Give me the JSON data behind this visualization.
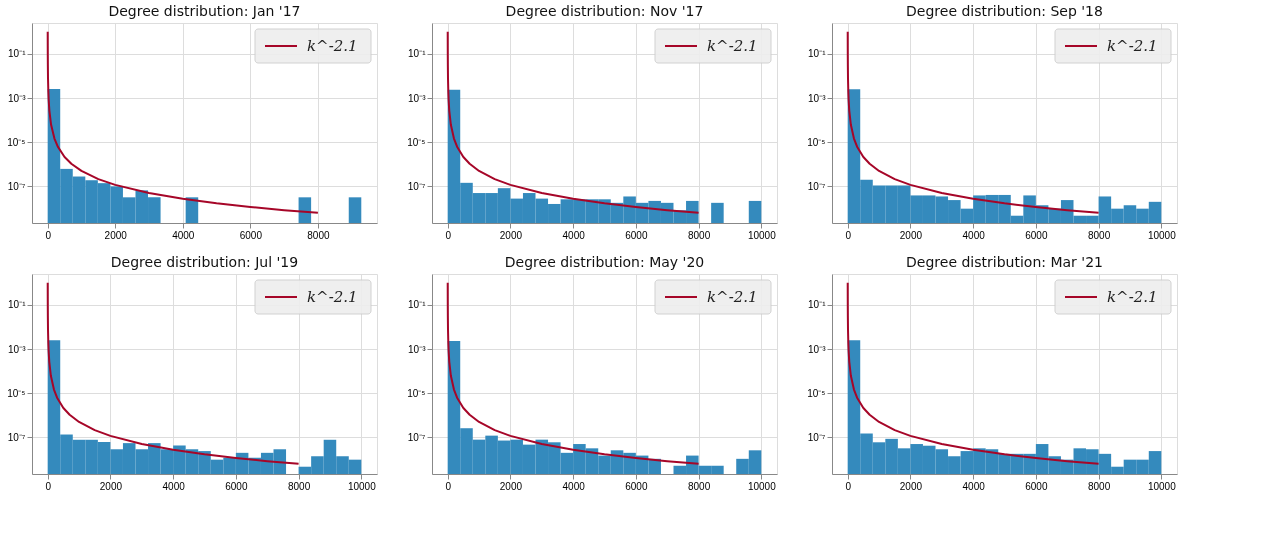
{
  "chart_data": [
    {
      "type": "histogram",
      "title": "Degree distribution: Jan '17",
      "color": "#348abd",
      "log": "y",
      "grid": true,
      "legend": "top right",
      "bins": [
        0,
        371.4,
        742.8,
        1114.2,
        1485.6,
        1857,
        2228.4,
        2599.8,
        2971.2,
        3342.6,
        3714,
        4085.4,
        4456.8,
        4828.2,
        5199.6,
        5571,
        5942.4,
        6313.8,
        6685.2,
        7056.6,
        7428,
        7799.4,
        8170.8,
        8542.2,
        8913.6,
        9285
      ],
      "values": [
        0.0026,
        6.2e-07,
        2.8e-07,
        1.9e-07,
        1.4e-07,
        1e-07,
        3.2e-08,
        6.6e-08,
        3.2e-08,
        null,
        null,
        3.2e-08,
        null,
        null,
        null,
        null,
        null,
        null,
        null,
        null,
        3.2e-08,
        null,
        null,
        null,
        3.2e-08
      ],
      "xlim": [
        -464,
        9750
      ],
      "xticks": [
        0,
        2000,
        4000,
        6000,
        8000
      ],
      "ylim": [
        2.2e-09,
        2.5
      ],
      "yticks": [
        {
          "value": 0.1,
          "label": "10⁻¹"
        },
        {
          "value": 0.001,
          "label": "10⁻³"
        },
        {
          "value": 1e-05,
          "label": "10⁻⁵"
        },
        {
          "value": 1e-07,
          "label": "10⁻⁷"
        }
      ],
      "series": [
        {
          "type": "line",
          "name": "k^-2.1",
          "color": "#a60628",
          "line_style": "solid",
          "x": [
            1,
            2,
            3,
            5,
            10,
            20,
            30,
            50,
            100,
            200,
            300,
            500,
            700,
            1000,
            1500,
            2000,
            3000,
            4000,
            5000,
            6000,
            7000,
            8000
          ],
          "values": [
            1,
            0.233,
            0.0996,
            0.034,
            0.00794,
            0.00186,
            0.00079,
            0.000271,
            6.31e-05,
            1.47e-05,
            6.29e-06,
            2.15e-06,
            1.06e-06,
            5.01e-07,
            2.14e-07,
            1.17e-07,
            4.99e-08,
            2.73e-08,
            1.71e-08,
            1.17e-08,
            8.4e-09,
            6.37e-09
          ]
        }
      ]
    },
    {
      "type": "histogram",
      "title": "Degree distribution: Nov '17",
      "color": "#348abd",
      "log": "y",
      "grid": true,
      "legend": "top right",
      "bins": [
        0,
        400,
        800,
        1200,
        1600,
        2000,
        2400,
        2800,
        3200,
        3600,
        4000,
        4400,
        4800,
        5200,
        5600,
        6000,
        6400,
        6800,
        7200,
        7600,
        8000,
        8400,
        8800,
        9200,
        9600,
        10000
      ],
      "values": [
        0.0024,
        1.45e-07,
        5e-08,
        5e-08,
        8.3e-08,
        2.8e-08,
        5e-08,
        2.8e-08,
        1.6e-08,
        2.6e-08,
        2.6e-08,
        2.6e-08,
        2.6e-08,
        1.8e-08,
        3.5e-08,
        1.8e-08,
        2.2e-08,
        1.8e-08,
        8.3e-09,
        2.2e-08,
        null,
        1.8e-08,
        null,
        null,
        2.2e-08
      ],
      "xlim": [
        -500,
        10500
      ],
      "xticks": [
        0,
        2000,
        4000,
        6000,
        8000,
        10000
      ],
      "ylim": [
        2.2e-09,
        2.5
      ],
      "yticks": [
        {
          "value": 0.1,
          "label": "10⁻¹"
        },
        {
          "value": 0.001,
          "label": "10⁻³"
        },
        {
          "value": 1e-05,
          "label": "10⁻⁵"
        },
        {
          "value": 1e-07,
          "label": "10⁻⁷"
        }
      ],
      "series": [
        {
          "type": "line",
          "name": "k^-2.1",
          "color": "#a60628",
          "line_style": "solid",
          "x": [
            1,
            2,
            3,
            5,
            10,
            20,
            30,
            50,
            100,
            200,
            300,
            500,
            700,
            1000,
            1500,
            2000,
            3000,
            4000,
            5000,
            6000,
            7000,
            8000
          ],
          "values": [
            1,
            0.233,
            0.0996,
            0.034,
            0.00794,
            0.00186,
            0.00079,
            0.000271,
            6.31e-05,
            1.47e-05,
            6.29e-06,
            2.15e-06,
            1.06e-06,
            5.01e-07,
            2.14e-07,
            1.17e-07,
            4.99e-08,
            2.73e-08,
            1.71e-08,
            1.17e-08,
            8.4e-09,
            6.37e-09
          ]
        }
      ]
    },
    {
      "type": "histogram",
      "title": "Degree distribution: Sep '18",
      "color": "#348abd",
      "log": "y",
      "grid": true,
      "legend": "top right",
      "bins": [
        0,
        400,
        800,
        1200,
        1600,
        2000,
        2400,
        2800,
        3200,
        3600,
        4000,
        4400,
        4800,
        5200,
        5600,
        6000,
        6400,
        6800,
        7200,
        7600,
        8000,
        8400,
        8800,
        9200,
        9600,
        10000
      ],
      "values": [
        0.0025,
        2e-07,
        1.1e-07,
        1.1e-07,
        1.1e-07,
        3.9e-08,
        3.9e-08,
        3.5e-08,
        2.4e-08,
        9.8e-09,
        3.9e-08,
        4.1e-08,
        4.1e-08,
        4.7e-09,
        3.9e-08,
        1.4e-08,
        9.8e-09,
        2.4e-08,
        4.7e-09,
        4.7e-09,
        3.5e-08,
        9.8e-09,
        1.4e-08,
        9.8e-09,
        2e-08
      ],
      "xlim": [
        -500,
        10500
      ],
      "xticks": [
        0,
        2000,
        4000,
        6000,
        8000,
        10000
      ],
      "ylim": [
        2.2e-09,
        2.5
      ],
      "yticks": [
        {
          "value": 0.1,
          "label": "10⁻¹"
        },
        {
          "value": 0.001,
          "label": "10⁻³"
        },
        {
          "value": 1e-05,
          "label": "10⁻⁵"
        },
        {
          "value": 1e-07,
          "label": "10⁻⁷"
        }
      ],
      "series": [
        {
          "type": "line",
          "name": "k^-2.1",
          "color": "#a60628",
          "line_style": "solid",
          "x": [
            1,
            2,
            3,
            5,
            10,
            20,
            30,
            50,
            100,
            200,
            300,
            500,
            700,
            1000,
            1500,
            2000,
            3000,
            4000,
            5000,
            6000,
            7000,
            8000
          ],
          "values": [
            1,
            0.233,
            0.0996,
            0.034,
            0.00794,
            0.00186,
            0.00079,
            0.000271,
            6.31e-05,
            1.47e-05,
            6.29e-06,
            2.15e-06,
            1.06e-06,
            5.01e-07,
            2.14e-07,
            1.17e-07,
            4.99e-08,
            2.73e-08,
            1.71e-08,
            1.17e-08,
            8.4e-09,
            6.37e-09
          ]
        }
      ]
    },
    {
      "type": "histogram",
      "title": "Degree distribution: Jul '19",
      "color": "#348abd",
      "log": "y",
      "grid": true,
      "legend": "top right",
      "bins": [
        0,
        400,
        800,
        1200,
        1600,
        2000,
        2400,
        2800,
        3200,
        3600,
        4000,
        4400,
        4800,
        5200,
        5600,
        6000,
        6400,
        6800,
        7200,
        7600,
        8000,
        8400,
        8800,
        9200,
        9600,
        10000
      ],
      "values": [
        0.0025,
        1.35e-07,
        7.8e-08,
        7.8e-08,
        6.2e-08,
        2.9e-08,
        5.5e-08,
        2.9e-08,
        5.5e-08,
        2.9e-08,
        4.3e-08,
        2.9e-08,
        2.4e-08,
        9.8e-09,
        1.2e-08,
        2e-08,
        1.2e-08,
        2e-08,
        2.9e-08,
        null,
        4.7e-09,
        1.4e-08,
        7.8e-08,
        1.4e-08,
        9.8e-09
      ],
      "xlim": [
        -500,
        10500
      ],
      "xticks": [
        0,
        2000,
        4000,
        6000,
        8000,
        10000
      ],
      "ylim": [
        2.2e-09,
        2.5
      ],
      "yticks": [
        {
          "value": 0.1,
          "label": "10⁻¹"
        },
        {
          "value": 0.001,
          "label": "10⁻³"
        },
        {
          "value": 1e-05,
          "label": "10⁻⁵"
        },
        {
          "value": 1e-07,
          "label": "10⁻⁷"
        }
      ],
      "series": [
        {
          "type": "line",
          "name": "k^-2.1",
          "color": "#a60628",
          "line_style": "solid",
          "x": [
            1,
            2,
            3,
            5,
            10,
            20,
            30,
            50,
            100,
            200,
            300,
            500,
            700,
            1000,
            1500,
            2000,
            3000,
            4000,
            5000,
            6000,
            7000,
            8000
          ],
          "values": [
            1,
            0.233,
            0.0996,
            0.034,
            0.00794,
            0.00186,
            0.00079,
            0.000271,
            6.31e-05,
            1.47e-05,
            6.29e-06,
            2.15e-06,
            1.06e-06,
            5.01e-07,
            2.14e-07,
            1.17e-07,
            4.99e-08,
            2.73e-08,
            1.71e-08,
            1.17e-08,
            8.4e-09,
            6.37e-09
          ]
        }
      ]
    },
    {
      "type": "histogram",
      "title": "Degree distribution: May '20",
      "color": "#348abd",
      "log": "y",
      "grid": true,
      "legend": "top right",
      "bins": [
        0,
        400,
        800,
        1200,
        1600,
        2000,
        2400,
        2800,
        3200,
        3600,
        4000,
        4400,
        4800,
        5200,
        5600,
        6000,
        6400,
        6800,
        7200,
        7600,
        8000,
        8400,
        8800,
        9200,
        9600,
        10000
      ],
      "values": [
        0.0023,
        2.6e-07,
        7.9e-08,
        1.2e-07,
        7.2e-08,
        7.9e-08,
        4.7e-08,
        7.9e-08,
        6e-08,
        2e-08,
        5e-08,
        3.2e-08,
        1.5e-08,
        2.6e-08,
        2e-08,
        1.5e-08,
        1.07e-08,
        null,
        5.2e-09,
        1.5e-08,
        5.2e-09,
        5.2e-09,
        null,
        1.07e-08,
        2.6e-08
      ],
      "xlim": [
        -500,
        10500
      ],
      "xticks": [
        0,
        2000,
        4000,
        6000,
        8000,
        10000
      ],
      "ylim": [
        2.2e-09,
        2.5
      ],
      "yticks": [
        {
          "value": 0.1,
          "label": "10⁻¹"
        },
        {
          "value": 0.001,
          "label": "10⁻³"
        },
        {
          "value": 1e-05,
          "label": "10⁻⁵"
        },
        {
          "value": 1e-07,
          "label": "10⁻⁷"
        }
      ],
      "series": [
        {
          "type": "line",
          "name": "k^-2.1",
          "color": "#a60628",
          "line_style": "solid",
          "x": [
            1,
            2,
            3,
            5,
            10,
            20,
            30,
            50,
            100,
            200,
            300,
            500,
            700,
            1000,
            1500,
            2000,
            3000,
            4000,
            5000,
            6000,
            7000,
            8000
          ],
          "values": [
            1,
            0.233,
            0.0996,
            0.034,
            0.00794,
            0.00186,
            0.00079,
            0.000271,
            6.31e-05,
            1.47e-05,
            6.29e-06,
            2.15e-06,
            1.06e-06,
            5.01e-07,
            2.14e-07,
            1.17e-07,
            4.99e-08,
            2.73e-08,
            1.71e-08,
            1.17e-08,
            8.4e-09,
            6.37e-09
          ]
        }
      ]
    },
    {
      "type": "histogram",
      "title": "Degree distribution: Mar '21",
      "color": "#348abd",
      "log": "y",
      "grid": true,
      "legend": "top right",
      "bins": [
        0,
        400,
        800,
        1200,
        1600,
        2000,
        2400,
        2800,
        3200,
        3600,
        4000,
        4400,
        4800,
        5200,
        5600,
        6000,
        6400,
        6800,
        7200,
        7600,
        8000,
        8400,
        8800,
        9200,
        9600,
        10000
      ],
      "values": [
        0.0025,
        1.5e-07,
        6e-08,
        8.6e-08,
        3.2e-08,
        5e-08,
        4.2e-08,
        2.9e-08,
        1.4e-08,
        2.4e-08,
        3.2e-08,
        2.9e-08,
        1.8e-08,
        1.8e-08,
        1.8e-08,
        5e-08,
        1.4e-08,
        9.8e-09,
        3.2e-08,
        2.9e-08,
        1.8e-08,
        4.7e-09,
        9.8e-09,
        9.8e-09,
        2.4e-08
      ],
      "xlim": [
        -500,
        10500
      ],
      "xticks": [
        0,
        2000,
        4000,
        6000,
        8000,
        10000
      ],
      "ylim": [
        2.2e-09,
        2.5
      ],
      "yticks": [
        {
          "value": 0.1,
          "label": "10⁻¹"
        },
        {
          "value": 0.001,
          "label": "10⁻³"
        },
        {
          "value": 1e-05,
          "label": "10⁻⁵"
        },
        {
          "value": 1e-07,
          "label": "10⁻⁷"
        }
      ],
      "series": [
        {
          "type": "line",
          "name": "k^-2.1",
          "color": "#a60628",
          "line_style": "solid",
          "x": [
            1,
            2,
            3,
            5,
            10,
            20,
            30,
            50,
            100,
            200,
            300,
            500,
            700,
            1000,
            1500,
            2000,
            3000,
            4000,
            5000,
            6000,
            7000,
            8000
          ],
          "values": [
            1,
            0.233,
            0.0996,
            0.034,
            0.00794,
            0.00186,
            0.00079,
            0.000271,
            6.31e-05,
            1.47e-05,
            6.29e-06,
            2.15e-06,
            1.06e-06,
            5.01e-07,
            2.14e-07,
            1.17e-07,
            4.99e-08,
            2.73e-08,
            1.71e-08,
            1.17e-08,
            8.4e-09,
            6.37e-09
          ]
        }
      ]
    }
  ]
}
